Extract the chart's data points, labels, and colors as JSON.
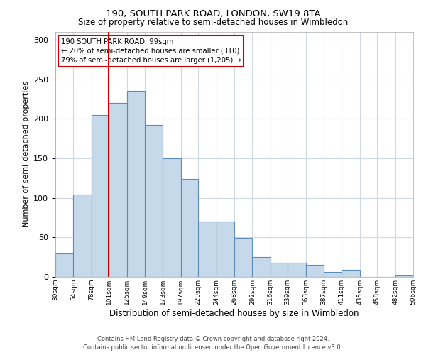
{
  "title1": "190, SOUTH PARK ROAD, LONDON, SW19 8TA",
  "title2": "Size of property relative to semi-detached houses in Wimbledon",
  "xlabel": "Distribution of semi-detached houses by size in Wimbledon",
  "ylabel": "Number of semi-detached properties",
  "bin_labels": [
    "30sqm",
    "54sqm",
    "78sqm",
    "101sqm",
    "125sqm",
    "149sqm",
    "173sqm",
    "197sqm",
    "220sqm",
    "244sqm",
    "268sqm",
    "292sqm",
    "316sqm",
    "339sqm",
    "363sqm",
    "387sqm",
    "411sqm",
    "435sqm",
    "458sqm",
    "482sqm",
    "506sqm"
  ],
  "bar_heights": [
    30,
    104,
    205,
    220,
    235,
    192,
    150,
    124,
    70,
    70,
    49,
    25,
    18,
    18,
    15,
    6,
    9,
    0,
    0,
    2
  ],
  "bar_color": "#c6d9ea",
  "bar_edge_color": "#5b8db8",
  "grid_color": "#d0d8e4",
  "annotation_title": "190 SOUTH PARK ROAD: 99sqm",
  "annotation_line1": "← 20% of semi-detached houses are smaller (310)",
  "annotation_line2": "79% of semi-detached houses are larger (1,205) →",
  "footnote1": "Contains HM Land Registry data © Crown copyright and database right 2024.",
  "footnote2": "Contains public sector information licensed under the Open Government Licence v3.0.",
  "ylim": [
    0,
    310
  ],
  "yticks": [
    0,
    50,
    100,
    150,
    200,
    250,
    300
  ],
  "bin_edges": [
    30,
    54,
    78,
    101,
    125,
    149,
    173,
    197,
    220,
    244,
    268,
    292,
    316,
    339,
    363,
    387,
    411,
    435,
    458,
    482,
    506
  ]
}
